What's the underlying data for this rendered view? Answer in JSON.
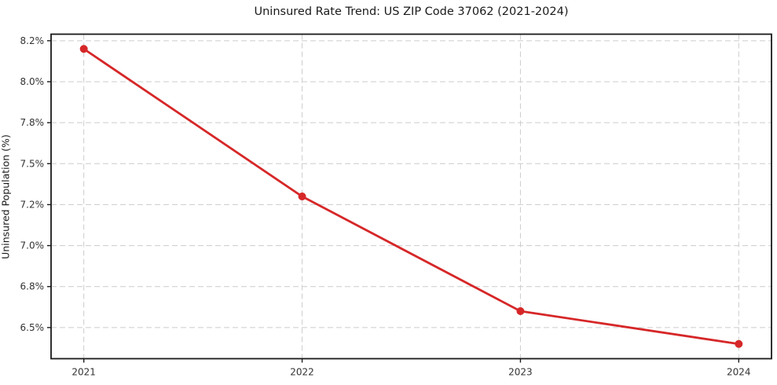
{
  "chart_data": {
    "type": "line",
    "title": "Uninsured Rate Trend: US ZIP Code 37062 (2021-2024)",
    "xlabel": "",
    "ylabel": "Uninsured Population (%)",
    "x": [
      2021,
      2022,
      2023,
      2024
    ],
    "y": [
      8.2,
      7.3,
      6.6,
      6.4
    ],
    "line_color": "#d62728",
    "marker": "circle",
    "marker_color": "#d62728",
    "xlim": [
      2020.85,
      2024.15
    ],
    "ylim": [
      6.31,
      8.29
    ],
    "xticks": {
      "values": [
        2021,
        2022,
        2023,
        2024
      ],
      "labels": [
        "2021",
        "2022",
        "2023",
        "2024"
      ]
    },
    "yticks": {
      "values": [
        6.5,
        6.75,
        7.0,
        7.25,
        7.5,
        7.75,
        8.0,
        8.25
      ],
      "labels": [
        "6.5%",
        "6.8%",
        "7.0%",
        "7.2%",
        "7.5%",
        "7.8%",
        "8.0%",
        "8.2%"
      ]
    },
    "grid": {
      "on": true,
      "linestyle": "dashed",
      "color": "#cccccc"
    },
    "legend": "none",
    "frame_color": "#1a1a1a",
    "text_color": "#333333",
    "background_color": "#ffffff"
  }
}
